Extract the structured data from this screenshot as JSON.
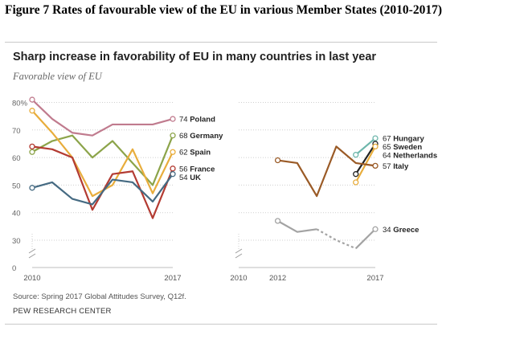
{
  "document": {
    "caption": "Figure 7 Rates of favourable view of the EU in various Member States (2010-2017)"
  },
  "chart_data": {
    "type": "line",
    "title": "Sharp increase in favorability of EU in many countries in last year",
    "subtitle": "Favorable view of EU",
    "source": "Source: Spring 2017 Global Attitudes Survey, Q12f.",
    "credit": "PEW RESEARCH CENTER",
    "ylim": [
      0,
      80
    ],
    "yticks": [
      {
        "value": 0,
        "label": "0"
      },
      {
        "value": 30,
        "label": "30"
      },
      {
        "value": 40,
        "label": "40"
      },
      {
        "value": 50,
        "label": "50"
      },
      {
        "value": 60,
        "label": "60"
      },
      {
        "value": 70,
        "label": "70"
      },
      {
        "value": 80,
        "label": "80%"
      }
    ],
    "grid": true,
    "axis_break": true,
    "panels": [
      {
        "xticks": [
          {
            "value": 2010,
            "label": "2010"
          },
          {
            "value": 2017,
            "label": "2017"
          }
        ],
        "xlim": [
          2010,
          2017
        ],
        "series": [
          {
            "name": "Poland",
            "end_label": "74 Poland",
            "color": "#c07b8e",
            "x": [
              2010,
              2011,
              2012,
              2013,
              2014,
              2015,
              2016,
              2017
            ],
            "values": [
              81,
              74,
              69,
              68,
              72,
              72,
              72,
              74
            ]
          },
          {
            "name": "Germany",
            "end_label": "68 Germany",
            "color": "#8ca44a",
            "x": [
              2010,
              2011,
              2012,
              2013,
              2014,
              2015,
              2016,
              2017
            ],
            "values": [
              62,
              66,
              68,
              60,
              66,
              58,
              50,
              68
            ]
          },
          {
            "name": "Spain",
            "end_label": "62 Spain",
            "color": "#e8ad3c",
            "x": [
              2010,
              2011,
              2012,
              2013,
              2014,
              2015,
              2016,
              2017
            ],
            "values": [
              77,
              69,
              60,
              46,
              50,
              63,
              47,
              62
            ]
          },
          {
            "name": "France",
            "end_label": "56 France",
            "color": "#b33b32",
            "x": [
              2010,
              2011,
              2012,
              2013,
              2014,
              2015,
              2016,
              2017
            ],
            "values": [
              64,
              63,
              60,
              41,
              54,
              55,
              38,
              56
            ]
          },
          {
            "name": "UK",
            "end_label": "54 UK",
            "color": "#456a82",
            "x": [
              2010,
              2011,
              2012,
              2013,
              2014,
              2015,
              2016,
              2017
            ],
            "values": [
              49,
              51,
              45,
              43,
              52,
              51,
              44,
              54
            ]
          }
        ]
      },
      {
        "xticks": [
          {
            "value": 2010,
            "label": "2010"
          },
          {
            "value": 2012,
            "label": "2012"
          },
          {
            "value": 2017,
            "label": "2017"
          }
        ],
        "xlim": [
          2010,
          2017
        ],
        "series": [
          {
            "name": "Hungary",
            "end_label": "67 Hungary",
            "color": "#6db6ab",
            "x": [
              2016,
              2017
            ],
            "values": [
              61,
              67
            ]
          },
          {
            "name": "Sweden",
            "end_label": "65 Sweden",
            "color": "#222222",
            "x": [
              2016,
              2017
            ],
            "values": [
              54,
              65
            ]
          },
          {
            "name": "Netherlands",
            "end_label": "64 Netherlands",
            "color": "#e8ad3c",
            "x": [
              2016,
              2017
            ],
            "values": [
              51,
              64
            ]
          },
          {
            "name": "Italy",
            "end_label": "57 Italy",
            "color": "#9a5a26",
            "x": [
              2012,
              2013,
              2014,
              2015,
              2016,
              2017
            ],
            "values": [
              59,
              58,
              46,
              64,
              58,
              57
            ]
          },
          {
            "name": "Greece",
            "end_label": "34 Greece",
            "color": "#a3a3a3",
            "x": [
              2012,
              2013,
              2014,
              2015,
              2016,
              2017
            ],
            "values": [
              37,
              33,
              34,
              30,
              27,
              34
            ],
            "dashed_from_index": 2,
            "dashed_to_index": 4
          }
        ]
      }
    ]
  }
}
